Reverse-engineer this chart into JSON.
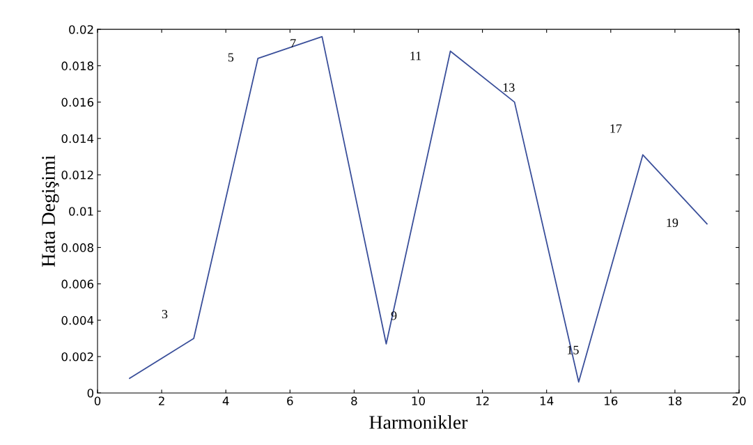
{
  "chart_data": {
    "type": "line",
    "xlabel": "Harmonikler",
    "ylabel": "Hata Degişimi",
    "x": [
      1,
      3,
      5,
      7,
      9,
      11,
      13,
      15,
      17,
      19
    ],
    "series": [
      {
        "color": "#3a4f9a",
        "values": [
          0.0008,
          0.003,
          0.0184,
          0.0196,
          0.0027,
          0.0188,
          0.016,
          0.0006,
          0.0131,
          0.0093
        ]
      }
    ],
    "xlim": [
      0,
      20
    ],
    "xticks": [
      0,
      2,
      4,
      6,
      8,
      10,
      12,
      14,
      16,
      18,
      20
    ],
    "ylim": [
      0,
      0.02
    ],
    "yticks": [
      0,
      0.002,
      0.004,
      0.006,
      0.008,
      0.01,
      0.012,
      0.014,
      0.016,
      0.018,
      0.02
    ],
    "grid": false,
    "legend": false,
    "marker": "none",
    "line_style": "solid",
    "annotations": [
      {
        "text": "3",
        "x": 3,
        "y": 0.003
      },
      {
        "text": "5",
        "x": 5,
        "y": 0.0184
      },
      {
        "text": "7",
        "x": 7,
        "y": 0.0196
      },
      {
        "text": "9",
        "x": 9,
        "y": 0.0027
      },
      {
        "text": "11",
        "x": 11,
        "y": 0.0188
      },
      {
        "text": "13",
        "x": 13,
        "y": 0.016
      },
      {
        "text": "15",
        "x": 15,
        "y": 0.0006
      },
      {
        "text": "17",
        "x": 17,
        "y": 0.0131
      },
      {
        "text": "19",
        "x": 19,
        "y": 0.0093
      }
    ]
  }
}
